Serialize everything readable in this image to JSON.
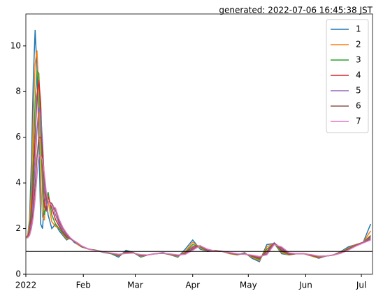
{
  "chart_data": {
    "type": "line",
    "title": "generated: 2022-07-06 16:45:38 JST",
    "x": [
      0,
      1,
      2,
      3,
      4,
      5,
      6,
      7,
      8,
      9,
      10,
      11,
      12,
      14,
      16,
      18,
      20,
      22,
      24,
      26,
      28,
      30,
      34,
      38,
      42,
      46,
      50,
      54,
      58,
      62,
      66,
      70,
      74,
      78,
      82,
      86,
      90,
      94,
      98,
      102,
      106,
      110,
      114,
      118,
      122,
      126,
      130,
      134,
      138,
      142,
      146,
      150,
      154,
      158,
      162,
      166,
      170,
      174,
      178,
      182,
      186
    ],
    "xlim": [
      0,
      187
    ],
    "xticks": [
      {
        "value": 0,
        "label": "2022"
      },
      {
        "value": 31,
        "label": "Feb"
      },
      {
        "value": 59,
        "label": "Mar"
      },
      {
        "value": 90,
        "label": "Apr"
      },
      {
        "value": 120,
        "label": "May"
      },
      {
        "value": 151,
        "label": "Jun"
      },
      {
        "value": 181,
        "label": "Jul"
      }
    ],
    "ylim": [
      0,
      11.4
    ],
    "yticks": [
      0,
      2,
      4,
      6,
      8,
      10
    ],
    "hline": 1,
    "legend": "upper right",
    "series": [
      {
        "name": "1",
        "color": "#1f77b4",
        "values": [
          1.6,
          1.7,
          2.4,
          5,
          8.5,
          10.7,
          9,
          6,
          2.2,
          2.0,
          3.2,
          3.4,
          2.6,
          2.0,
          2.2,
          1.9,
          1.7,
          1.5,
          1.6,
          1.4,
          1.3,
          1.2,
          1.1,
          1.05,
          0.95,
          0.9,
          0.75,
          1.05,
          0.95,
          0.75,
          0.85,
          0.9,
          0.95,
          0.85,
          0.75,
          1.1,
          1.5,
          1.1,
          1.0,
          1.05,
          1.0,
          0.9,
          0.85,
          0.95,
          0.7,
          0.55,
          1.3,
          1.35,
          0.9,
          0.85,
          0.9,
          0.9,
          0.8,
          0.7,
          0.8,
          0.85,
          1.0,
          1.2,
          1.3,
          1.4,
          2.2
        ]
      },
      {
        "name": "2",
        "color": "#ff7f0e",
        "values": [
          1.6,
          1.7,
          2.2,
          3.8,
          6.8,
          9.2,
          9.8,
          8,
          4,
          2.5,
          2.4,
          3.5,
          3.2,
          2.3,
          2.1,
          2.0,
          1.75,
          1.55,
          1.55,
          1.45,
          1.3,
          1.2,
          1.1,
          1.05,
          0.97,
          0.9,
          0.8,
          1.0,
          0.95,
          0.78,
          0.85,
          0.9,
          0.93,
          0.85,
          0.78,
          1.0,
          1.4,
          1.15,
          1.0,
          1.05,
          1.0,
          0.9,
          0.85,
          0.92,
          0.75,
          0.6,
          1.2,
          1.35,
          0.95,
          0.85,
          0.9,
          0.9,
          0.8,
          0.72,
          0.8,
          0.85,
          0.98,
          1.15,
          1.3,
          1.4,
          1.9
        ]
      },
      {
        "name": "3",
        "color": "#2ca02c",
        "values": [
          1.6,
          1.65,
          2.0,
          3.0,
          5.0,
          7.5,
          8.9,
          8.8,
          6.5,
          3.5,
          2.6,
          3.0,
          3.6,
          2.6,
          2.2,
          2.0,
          1.8,
          1.6,
          1.55,
          1.45,
          1.35,
          1.2,
          1.1,
          1.05,
          0.98,
          0.9,
          0.82,
          0.98,
          0.95,
          0.8,
          0.85,
          0.9,
          0.92,
          0.86,
          0.8,
          0.95,
          1.3,
          1.2,
          1.0,
          1.04,
          1.0,
          0.92,
          0.86,
          0.9,
          0.78,
          0.65,
          1.1,
          1.35,
          1.0,
          0.86,
          0.9,
          0.9,
          0.82,
          0.74,
          0.8,
          0.85,
          0.96,
          1.12,
          1.28,
          1.4,
          1.7
        ]
      },
      {
        "name": "4",
        "color": "#d62728",
        "values": [
          1.6,
          1.62,
          1.9,
          2.6,
          4.0,
          6.0,
          7.8,
          8.5,
          7.5,
          5.0,
          3.0,
          2.8,
          3.4,
          2.9,
          2.4,
          2.1,
          1.85,
          1.65,
          1.55,
          1.45,
          1.35,
          1.22,
          1.1,
          1.04,
          0.98,
          0.92,
          0.84,
          0.95,
          0.94,
          0.82,
          0.85,
          0.9,
          0.92,
          0.87,
          0.82,
          0.92,
          1.2,
          1.25,
          1.02,
          1.03,
          1.0,
          0.93,
          0.87,
          0.89,
          0.8,
          0.7,
          1.0,
          1.38,
          1.05,
          0.88,
          0.9,
          0.9,
          0.83,
          0.76,
          0.8,
          0.84,
          0.95,
          1.1,
          1.27,
          1.4,
          1.65
        ]
      },
      {
        "name": "5",
        "color": "#9467bd",
        "values": [
          1.6,
          1.6,
          1.8,
          2.3,
          3.3,
          4.8,
          6.3,
          7.3,
          7.0,
          5.8,
          3.8,
          3.0,
          3.2,
          3.1,
          2.6,
          2.2,
          1.9,
          1.7,
          1.55,
          1.45,
          1.35,
          1.23,
          1.1,
          1.03,
          0.98,
          0.92,
          0.86,
          0.93,
          0.93,
          0.84,
          0.85,
          0.9,
          0.92,
          0.88,
          0.83,
          0.9,
          1.15,
          1.25,
          1.05,
          1.02,
          1.0,
          0.94,
          0.88,
          0.88,
          0.82,
          0.74,
          0.92,
          1.38,
          1.1,
          0.9,
          0.9,
          0.9,
          0.84,
          0.78,
          0.8,
          0.84,
          0.94,
          1.08,
          1.25,
          1.4,
          1.6
        ]
      },
      {
        "name": "6",
        "color": "#8c564b",
        "values": [
          1.6,
          1.6,
          1.75,
          2.1,
          2.8,
          3.9,
          5.1,
          6.0,
          6.0,
          5.5,
          4.2,
          3.3,
          3.2,
          3.1,
          2.8,
          2.3,
          2.0,
          1.75,
          1.57,
          1.46,
          1.36,
          1.24,
          1.1,
          1.03,
          0.98,
          0.93,
          0.87,
          0.92,
          0.93,
          0.85,
          0.85,
          0.9,
          0.92,
          0.88,
          0.84,
          0.88,
          1.1,
          1.25,
          1.08,
          1.02,
          1.0,
          0.95,
          0.89,
          0.88,
          0.83,
          0.76,
          0.88,
          1.35,
          1.15,
          0.92,
          0.9,
          0.9,
          0.85,
          0.79,
          0.8,
          0.84,
          0.93,
          1.07,
          1.24,
          1.38,
          1.55
        ]
      },
      {
        "name": "7",
        "color": "#e377c2",
        "values": [
          1.6,
          1.6,
          1.7,
          2.0,
          2.5,
          3.3,
          4.3,
          5.2,
          5.2,
          5.0,
          4.4,
          3.6,
          3.2,
          3.0,
          2.9,
          2.4,
          2.05,
          1.8,
          1.6,
          1.47,
          1.37,
          1.25,
          1.1,
          1.03,
          0.98,
          0.93,
          0.88,
          0.91,
          0.93,
          0.86,
          0.85,
          0.9,
          0.92,
          0.89,
          0.85,
          0.87,
          1.05,
          1.25,
          1.1,
          1.02,
          1.0,
          0.95,
          0.9,
          0.88,
          0.84,
          0.78,
          0.85,
          1.3,
          1.2,
          0.94,
          0.9,
          0.9,
          0.86,
          0.8,
          0.8,
          0.84,
          0.92,
          1.06,
          1.23,
          1.37,
          1.5
        ]
      }
    ]
  }
}
